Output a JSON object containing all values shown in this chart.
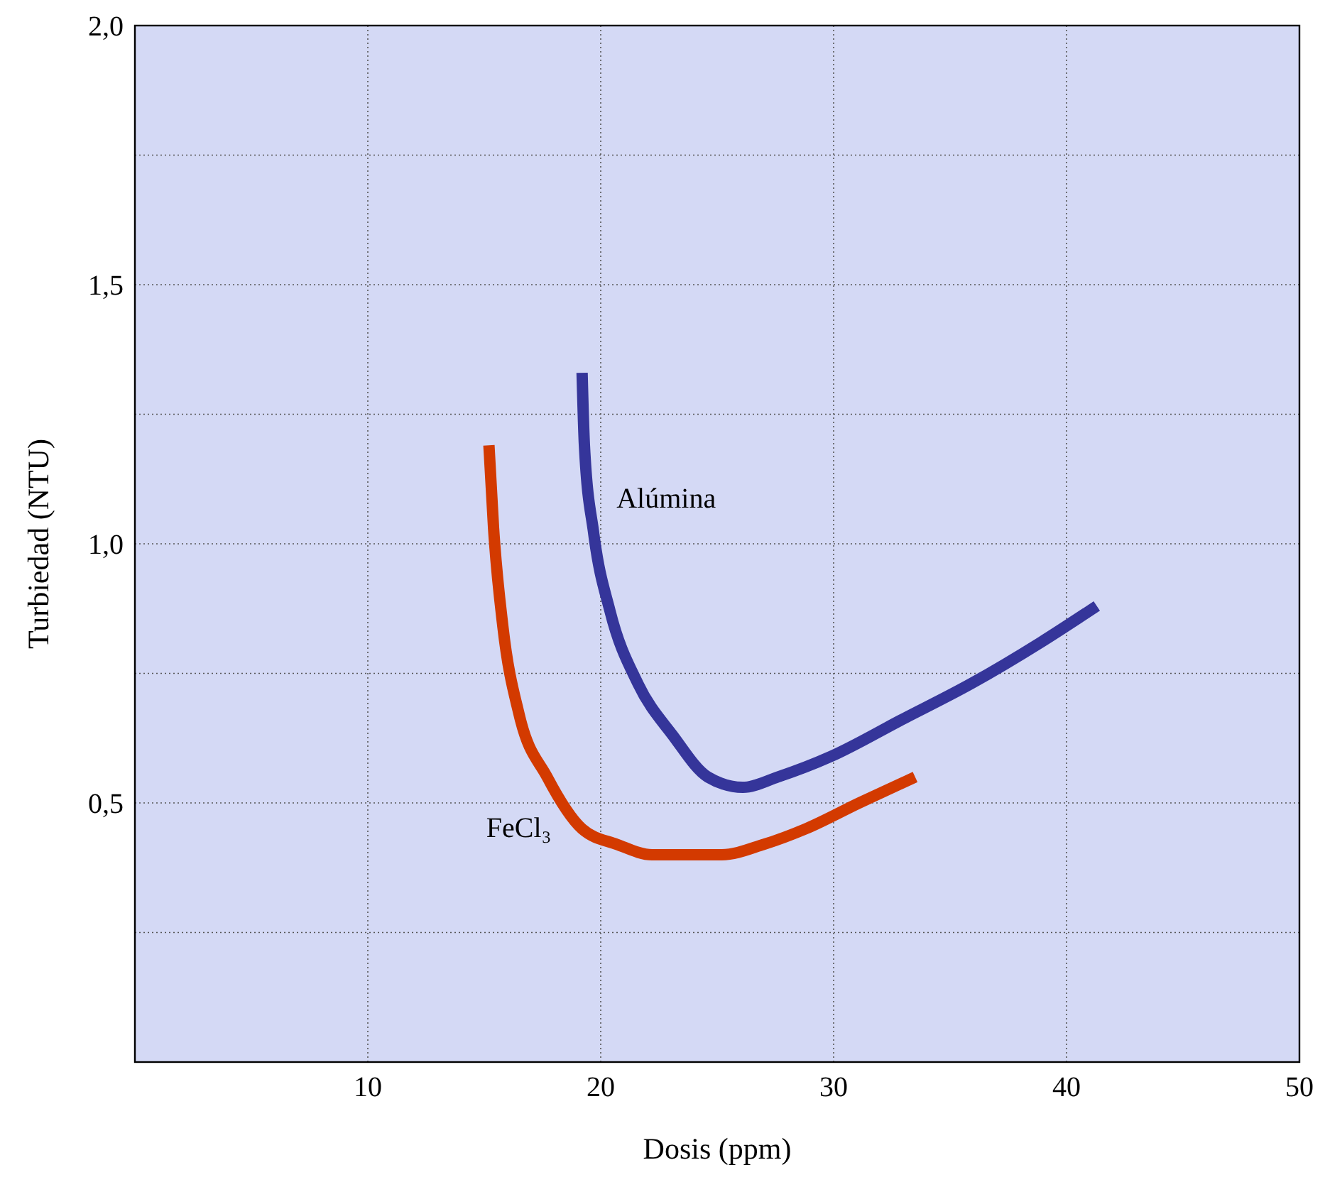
{
  "chart_data": {
    "type": "line",
    "xlabel": "Dosis (ppm)",
    "ylabel": "Turbiedad (NTU)",
    "xlim": [
      0,
      50
    ],
    "xticks": [
      10,
      20,
      30,
      40,
      50
    ],
    "ylim": [
      0,
      2
    ],
    "yticks": [
      {
        "value": 0.25,
        "label": null
      },
      {
        "value": 0.5,
        "label": "0,5"
      },
      {
        "value": 0.75,
        "label": null
      },
      {
        "value": 1,
        "label": "1,0"
      },
      {
        "value": 1.25,
        "label": null
      },
      {
        "value": 1.5,
        "label": "1,5"
      },
      {
        "value": 1.75,
        "label": null
      },
      {
        "value": 2,
        "label": "2,0"
      }
    ],
    "grid": true,
    "line_style": "solid",
    "marker": "none",
    "series": [
      {
        "name": "Alúmina",
        "color": "#35359a",
        "x": [
          19.2,
          19.3,
          19.7,
          20.4,
          21.6,
          23.1,
          24.6,
          26.1,
          27.6,
          29.9,
          32.9,
          35.9,
          38.9,
          41.3
        ],
        "values": [
          1.33,
          1.19,
          1.02,
          0.87,
          0.73,
          0.63,
          0.55,
          0.53,
          0.55,
          0.59,
          0.66,
          0.73,
          0.81,
          0.88
        ]
      },
      {
        "name": "FeCl₃",
        "color": "#d33a00",
        "x": [
          15.2,
          15.4,
          15.8,
          16.5,
          17.7,
          19.2,
          20.7,
          22.2,
          23.7,
          25.2,
          27.0,
          28.8,
          31.1,
          33.5
        ],
        "values": [
          1.19,
          1.03,
          0.84,
          0.67,
          0.55,
          0.45,
          0.42,
          0.4,
          0.4,
          0.4,
          0.42,
          0.45,
          0.5,
          0.55
        ]
      }
    ]
  }
}
